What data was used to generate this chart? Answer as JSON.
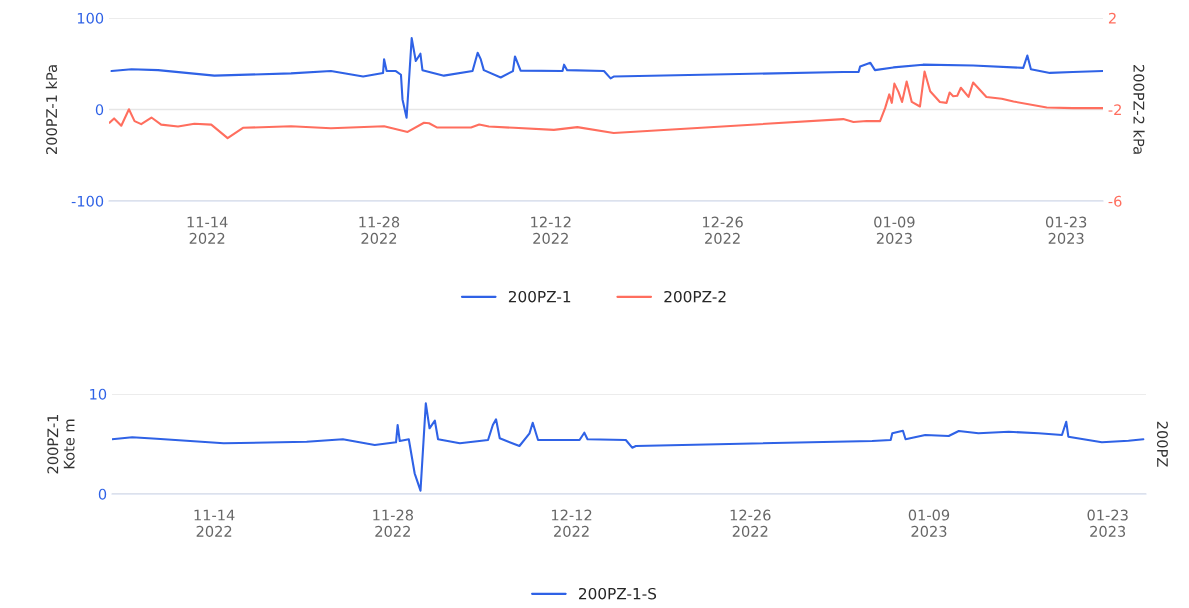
{
  "chart_data": [
    {
      "type": "line",
      "ylabel": "200PZ-1 kPa",
      "y2label": "200PZ-2 kPa",
      "grid": "y",
      "legend": "bottom",
      "marker": "none",
      "line_style": "solid",
      "xlim": [
        "2022-11-06",
        "2023-01-26"
      ],
      "xticks": [
        {
          "value": "2022-11-14",
          "label": "11-14\n2022"
        },
        {
          "value": "2022-11-28",
          "label": "11-28\n2022"
        },
        {
          "value": "2022-12-12",
          "label": "12-12\n2022"
        },
        {
          "value": "2022-12-26",
          "label": "12-26\n2022"
        },
        {
          "value": "2023-01-09",
          "label": "01-09\n2023"
        },
        {
          "value": "2023-01-23",
          "label": "01-23\n2023"
        }
      ],
      "ylim": [
        -100,
        100
      ],
      "yticks": [
        -100,
        0,
        100
      ],
      "y2lim": [
        -6,
        2
      ],
      "y2ticks": [
        -6,
        -2,
        2
      ],
      "series": [
        {
          "name": "200PZ-1",
          "color": "#2f62e6",
          "x": [
            "2022-11-06T05:00",
            "2022-11-07T20:00",
            "2022-11-10T00:00",
            "2022-11-14T14:00",
            "2022-11-20T20:00",
            "2022-11-24T02:00",
            "2022-11-26T17:00",
            "2022-11-28T08:00",
            "2022-11-28T10:00",
            "2022-11-28T15:00",
            "2022-11-29T09:00",
            "2022-11-29T19:00",
            "2022-11-29T22:00",
            "2022-11-30T06:00",
            "2022-11-30T16:00",
            "2022-12-01T00:00",
            "2022-12-01T09:00",
            "2022-12-01T13:00",
            "2022-12-03T07:00",
            "2022-12-05T15:00",
            "2022-12-06T01:00",
            "2022-12-06T07:00",
            "2022-12-06T13:00",
            "2022-12-07T22:00",
            "2022-12-08T22:00",
            "2022-12-09T02:00",
            "2022-12-09T13:00",
            "2022-12-12T23:00",
            "2022-12-13T02:00",
            "2022-12-13T08:00",
            "2022-12-16T08:00",
            "2022-12-16T21:00",
            "2022-12-17T03:00",
            "2023-01-04T20:00",
            "2023-01-06T02:00",
            "2023-01-06T05:00",
            "2023-01-07T01:00",
            "2023-01-07T10:00",
            "2023-01-08T22:00",
            "2023-01-11T08:00",
            "2023-01-15T10:00",
            "2023-01-19T12:00",
            "2023-01-19T20:00",
            "2023-01-20T03:00",
            "2023-01-21T16:00",
            "2023-01-23T13:00",
            "2023-01-26T00:00"
          ],
          "values": [
            42,
            44,
            43,
            37,
            39.5,
            42,
            36,
            40,
            55,
            42,
            42,
            38,
            11,
            -9,
            78,
            53,
            61,
            43,
            37,
            42,
            62,
            55,
            43,
            35,
            42,
            58,
            42.5,
            42,
            49,
            43,
            42,
            34,
            36,
            41,
            41,
            47,
            51,
            43,
            46,
            49,
            48,
            45.5,
            59,
            44,
            40,
            41,
            42
          ]
        },
        {
          "name": "200PZ-2",
          "color": "#ff6e5e",
          "axis": "y2",
          "x": [
            "2022-11-06T01:00",
            "2022-11-06T10:00",
            "2022-11-07T00:00",
            "2022-11-07T15:00",
            "2022-11-08T02:00",
            "2022-11-08T15:00",
            "2022-11-09T11:00",
            "2022-11-10T06:00",
            "2022-11-11T15:00",
            "2022-11-12T23:00",
            "2022-11-14T08:00",
            "2022-11-15T16:00",
            "2022-11-16T22:00",
            "2022-11-20T20:00",
            "2022-11-24T02:00",
            "2022-11-28T10:00",
            "2022-11-30T08:00",
            "2022-12-01T16:00",
            "2022-12-02T02:00",
            "2022-12-02T18:00",
            "2022-12-05T12:00",
            "2022-12-06T04:00",
            "2022-12-06T23:00",
            "2022-12-09T00:00",
            "2022-12-12T06:00",
            "2022-12-14T04:00",
            "2022-12-17T03:00",
            "2023-01-04T20:00",
            "2023-01-05T16:00",
            "2023-01-06T18:00",
            "2023-01-07T20:00",
            "2023-01-08T06:00",
            "2023-01-08T14:00",
            "2023-01-08T19:00",
            "2023-01-09T00:00",
            "2023-01-09T08:00",
            "2023-01-09T15:00",
            "2023-01-10T00:00",
            "2023-01-10T10:00",
            "2023-01-11T02:00",
            "2023-01-11T11:00",
            "2023-01-11T22:00",
            "2023-01-12T17:00",
            "2023-01-13T06:00",
            "2023-01-13T12:00",
            "2023-01-13T19:00",
            "2023-01-14T03:00",
            "2023-01-14T10:00",
            "2023-01-15T01:00",
            "2023-01-15T10:00",
            "2023-01-16T12:00",
            "2023-01-17T18:00",
            "2023-01-18T17:00",
            "2023-01-21T10:00",
            "2023-01-23T13:00",
            "2023-01-26T00:00"
          ],
          "values": [
            -2.58,
            -2.39,
            -2.71,
            -1.99,
            -2.51,
            -2.64,
            -2.35,
            -2.66,
            -2.74,
            -2.62,
            -2.66,
            -3.25,
            -2.8,
            -2.73,
            -2.82,
            -2.73,
            -2.98,
            -2.58,
            -2.6,
            -2.79,
            -2.79,
            -2.66,
            -2.74,
            -2.8,
            -2.89,
            -2.77,
            -3.03,
            -2.42,
            -2.55,
            -2.5,
            -2.51,
            -1.93,
            -1.34,
            -1.71,
            -0.87,
            -1.23,
            -1.67,
            -0.78,
            -1.67,
            -1.87,
            -0.34,
            -1.2,
            -1.67,
            -1.71,
            -1.26,
            -1.42,
            -1.4,
            -1.05,
            -1.45,
            -0.82,
            -1.45,
            -1.53,
            -1.65,
            -1.91,
            -1.94,
            -1.94
          ]
        }
      ]
    },
    {
      "type": "line",
      "ylabel": "200PZ-1\nKote m",
      "y2label": "200PZ",
      "grid": "y",
      "legend": "bottom",
      "marker": "none",
      "line_style": "solid",
      "xlim": [
        "2022-11-06",
        "2023-01-26"
      ],
      "xticks": [
        {
          "value": "2022-11-14",
          "label": "11-14\n2022"
        },
        {
          "value": "2022-11-28",
          "label": "11-28\n2022"
        },
        {
          "value": "2022-12-12",
          "label": "12-12\n2022"
        },
        {
          "value": "2022-12-26",
          "label": "12-26\n2022"
        },
        {
          "value": "2023-01-09",
          "label": "01-09\n2023"
        },
        {
          "value": "2023-01-23",
          "label": "01-23\n2023"
        }
      ],
      "ylim": [
        0,
        10
      ],
      "yticks": [
        0,
        10
      ],
      "series": [
        {
          "name": "200PZ-1-S",
          "color": "#2f62e6",
          "x": [
            "2022-11-06T00:00",
            "2022-11-07T14:00",
            "2022-11-09T12:00",
            "2022-11-14T18:00",
            "2022-11-21T06:00",
            "2022-11-24T02:00",
            "2022-11-26T14:00",
            "2022-11-28T06:00",
            "2022-11-28T09:00",
            "2022-11-28T13:00",
            "2022-11-29T06:00",
            "2022-11-29T17:00",
            "2022-11-30T04:00",
            "2022-11-30T14:00",
            "2022-11-30T21:00",
            "2022-12-01T07:00",
            "2022-12-01T13:00",
            "2022-12-03T06:00",
            "2022-12-05T11:00",
            "2022-12-05T20:00",
            "2022-12-06T02:00",
            "2022-12-06T09:00",
            "2022-12-07T22:00",
            "2022-12-08T17:00",
            "2022-12-08T23:00",
            "2022-12-09T09:00",
            "2022-12-12T15:00",
            "2022-12-13T00:00",
            "2022-12-13T06:00",
            "2022-12-16T06:00",
            "2022-12-16T18:00",
            "2022-12-17T01:00",
            "2023-01-04T13:00",
            "2023-01-06T00:00",
            "2023-01-06T03:00",
            "2023-01-06T23:00",
            "2023-01-07T04:00",
            "2023-01-08T17:00",
            "2023-01-10T13:00",
            "2023-01-11T08:00",
            "2023-01-12T21:00",
            "2023-01-15T06:00",
            "2023-01-17T14:00",
            "2023-01-19T10:00",
            "2023-01-19T18:00",
            "2023-01-19T22:00",
            "2023-01-22T13:00",
            "2023-01-24T15:00",
            "2023-01-25T19:00"
          ],
          "values": [
            5.47,
            5.67,
            5.53,
            5.07,
            5.23,
            5.47,
            4.9,
            5.17,
            6.9,
            5.3,
            5.47,
            2.07,
            0.33,
            9.07,
            6.57,
            7.33,
            5.47,
            5.07,
            5.4,
            6.9,
            7.47,
            5.57,
            4.8,
            6.07,
            7.13,
            5.4,
            5.4,
            6.13,
            5.47,
            5.4,
            4.63,
            4.8,
            5.3,
            5.4,
            6.07,
            6.33,
            5.47,
            5.9,
            5.8,
            6.3,
            6.07,
            6.23,
            6.07,
            5.9,
            7.23,
            5.73,
            5.17,
            5.33,
            5.47
          ]
        }
      ]
    }
  ]
}
